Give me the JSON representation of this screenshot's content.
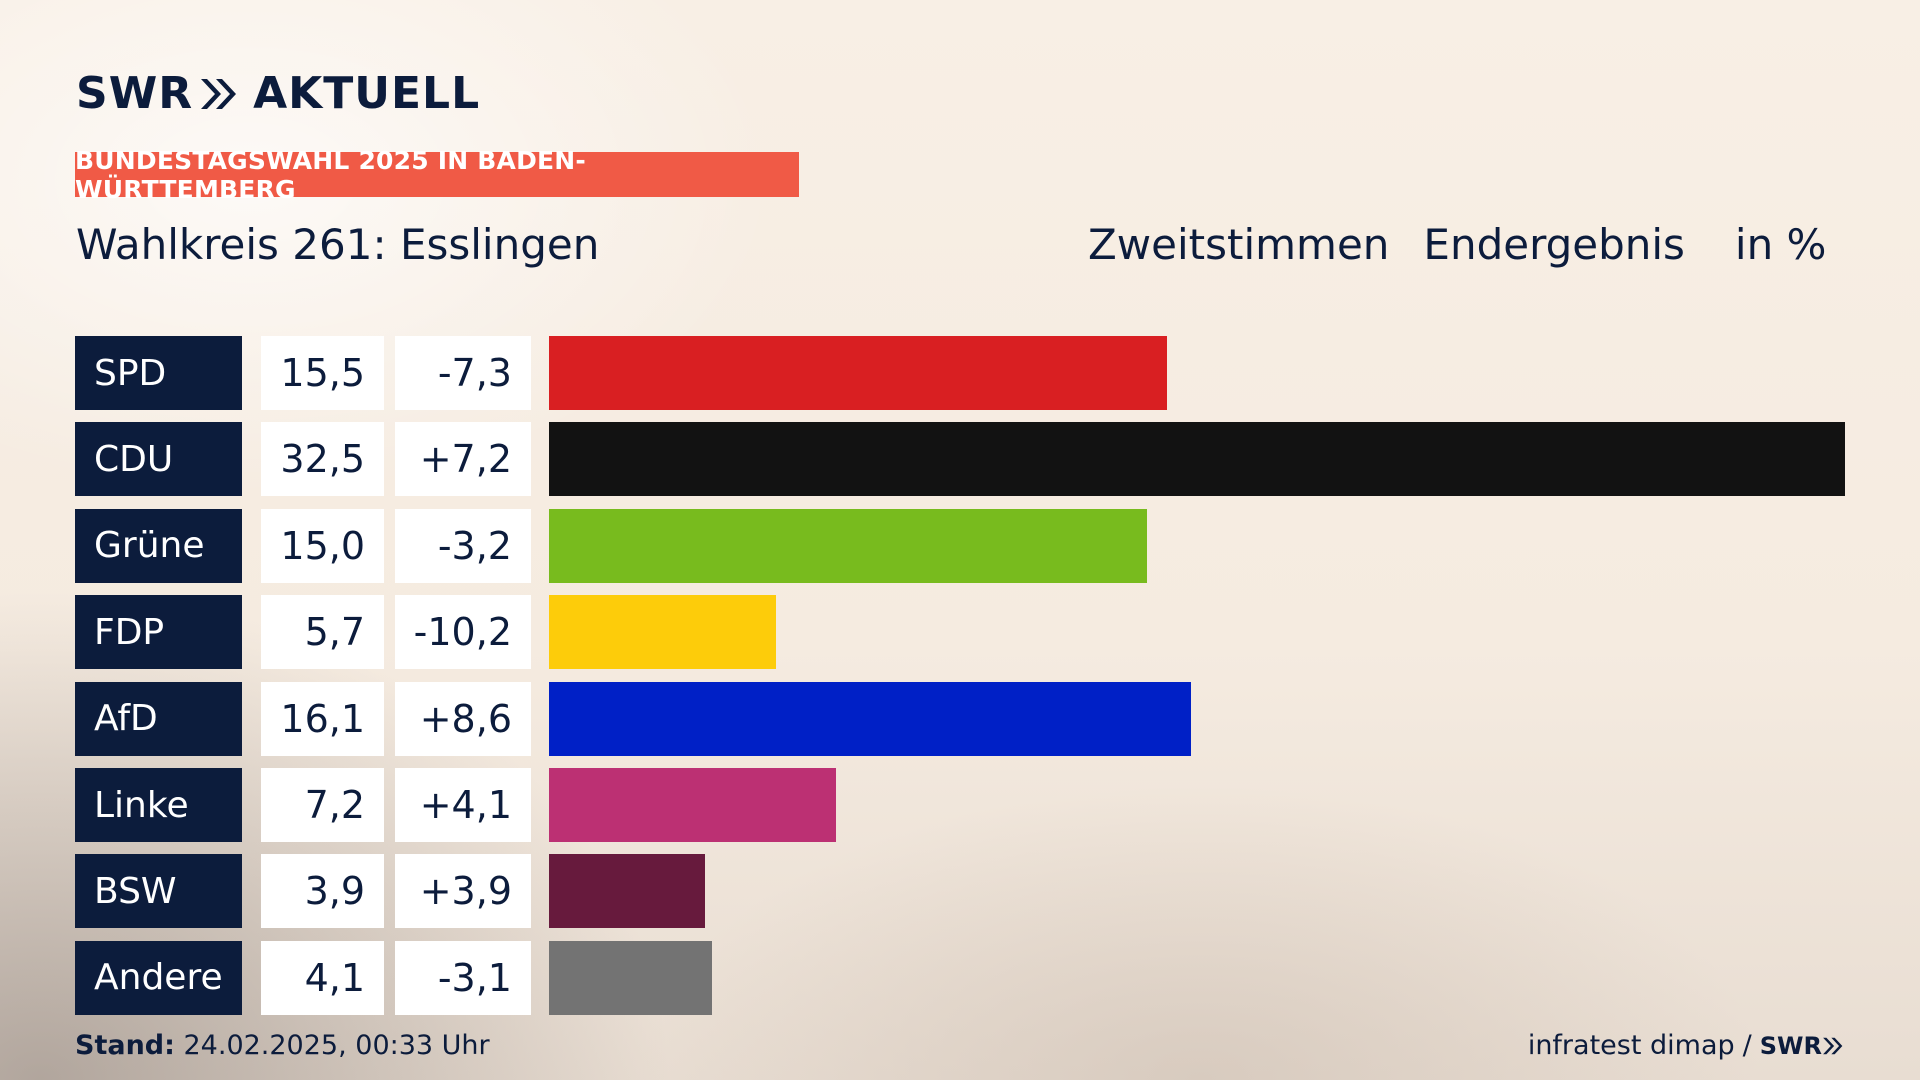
{
  "header": {
    "logo_left": "SWR",
    "logo_right": "AKTUELL",
    "banner": "BUNDESTAGSWAHL 2025 IN BADEN-WÜRTTEMBERG",
    "subtitle_left": "Wahlkreis 261: Esslingen",
    "subtitle_mid1": "Zweitstimmen",
    "subtitle_mid2": "Endergebnis",
    "subtitle_unit": "in %"
  },
  "footer": {
    "stand_label": "Stand:",
    "stand_value": " 24.02.2025, 00:33 Uhr",
    "source": "infratest dimap",
    "separator": "/",
    "source_logo": "SWR"
  },
  "chart_data": {
    "type": "bar",
    "orientation": "horizontal",
    "categories": [
      "SPD",
      "CDU",
      "Grüne",
      "FDP",
      "AfD",
      "Linke",
      "BSW",
      "Andere"
    ],
    "values": [
      15.5,
      32.5,
      15.0,
      5.7,
      16.1,
      7.2,
      3.9,
      4.1
    ],
    "value_labels": [
      "15,5",
      "32,5",
      "15,0",
      "5,7",
      "16,1",
      "7,2",
      "3,9",
      "4,1"
    ],
    "diff_labels": [
      "-7,3",
      "+7,2",
      "-3,2",
      "-10,2",
      "+8,6",
      "+4,1",
      "+3,9",
      "-3,1"
    ],
    "colors": [
      "#d91f22",
      "#121212",
      "#78bb1e",
      "#fdcc0a",
      "#0020c6",
      "#bc3073",
      "#671a3d",
      "#737373"
    ],
    "xlim": [
      0,
      32.5
    ]
  }
}
